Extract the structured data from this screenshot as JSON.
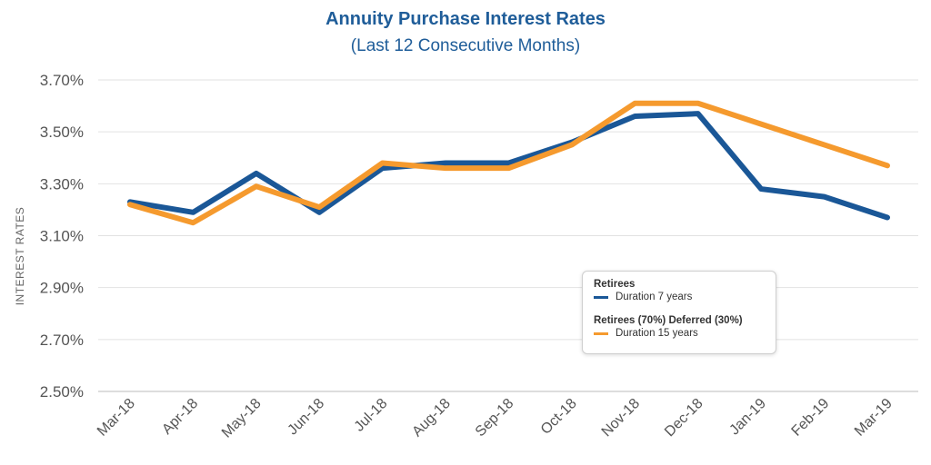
{
  "chart_data": {
    "type": "line",
    "title": "Annuity Purchase Interest Rates",
    "subtitle": "(Last 12 Consecutive Months)",
    "xlabel": "",
    "ylabel": "INTEREST RATES",
    "categories": [
      "Mar-18",
      "Apr-18",
      "May-18",
      "Jun-18",
      "Jul-18",
      "Aug-18",
      "Sep-18",
      "Oct-18",
      "Nov-18",
      "Dec-18",
      "Jan-19",
      "Feb-19",
      "Mar-19"
    ],
    "y_ticks": [
      "2.50%",
      "2.70%",
      "2.90%",
      "3.10%",
      "3.30%",
      "3.50%",
      "3.70%"
    ],
    "y_tick_values": [
      2.5,
      2.7,
      2.9,
      3.1,
      3.3,
      3.5,
      3.7
    ],
    "ylim": [
      2.5,
      3.7
    ],
    "grid": true,
    "legend_position": "center-right",
    "series": [
      {
        "name": "Retirees",
        "label": "Duration 7 years",
        "color": "#1a5797",
        "values": [
          3.23,
          3.19,
          3.34,
          3.19,
          3.36,
          3.38,
          3.38,
          3.46,
          3.56,
          3.57,
          3.28,
          3.25,
          3.17
        ]
      },
      {
        "name": "Retirees (70%) Deferred (30%)",
        "label": "Duration 15 years",
        "color": "#f59a2e",
        "values": [
          3.22,
          3.15,
          3.29,
          3.21,
          3.38,
          3.36,
          3.36,
          3.45,
          3.61,
          3.61,
          3.53,
          3.45,
          3.37
        ]
      }
    ]
  }
}
